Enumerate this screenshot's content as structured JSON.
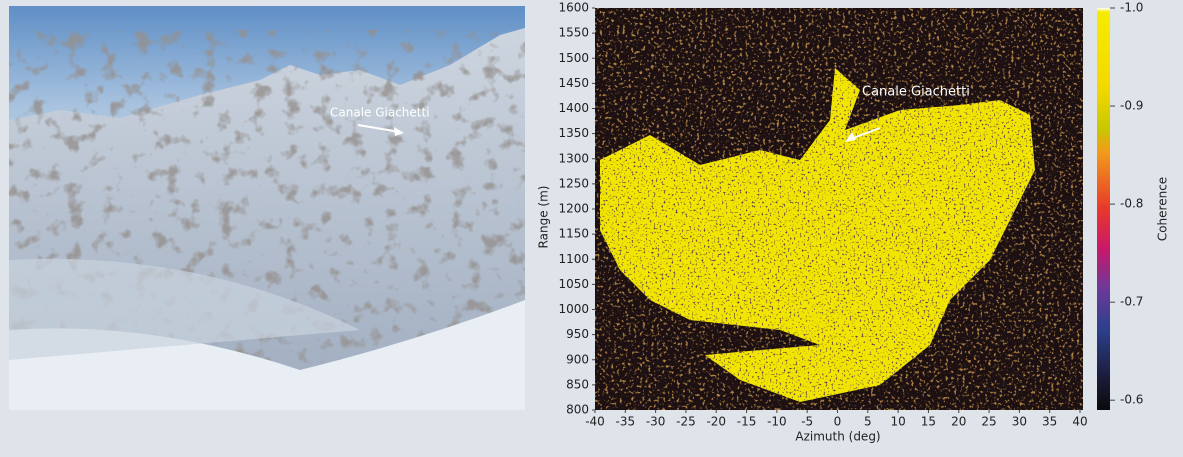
{
  "photo": {
    "annotation": "Canale Giachetti"
  },
  "chart_data": {
    "type": "image",
    "xlabel": "Azimuth (deg)",
    "ylabel": "Range (m)",
    "annotation": "Canale Giachetti",
    "xlim": [
      -40,
      40
    ],
    "xticks": [
      -40,
      -35,
      -30,
      -25,
      -20,
      -15,
      -10,
      -5,
      0,
      5,
      10,
      15,
      20,
      25,
      30,
      35,
      40
    ],
    "ylim": [
      800,
      1600
    ],
    "yticks": [
      800,
      850,
      900,
      950,
      1000,
      1050,
      1100,
      1150,
      1200,
      1250,
      1300,
      1350,
      1400,
      1450,
      1500,
      1550,
      1600
    ],
    "colorbar": {
      "label": "Coherence",
      "lim": [
        -1.0,
        -0.59
      ],
      "ticks": [
        {
          "value": -1.0,
          "label": "-1.0"
        },
        -0.9,
        -0.8,
        -0.7,
        -0.6
      ]
    }
  }
}
